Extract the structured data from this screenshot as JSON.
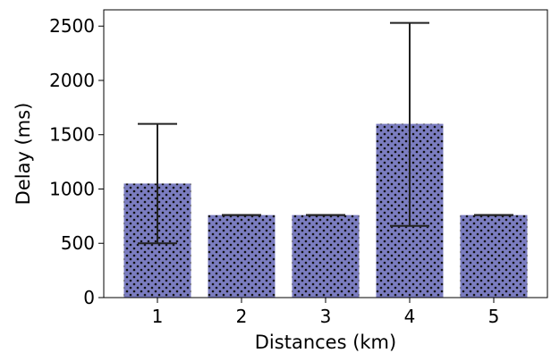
{
  "chart_data": {
    "type": "bar",
    "categories": [
      "1",
      "2",
      "3",
      "4",
      "5"
    ],
    "values": [
      1050,
      760,
      760,
      1600,
      760
    ],
    "error_low": [
      500,
      760,
      760,
      660,
      760
    ],
    "error_high": [
      1600,
      760,
      760,
      2530,
      760
    ],
    "xlabel": "Distances (km)",
    "ylabel": "Delay (ms)",
    "ylim": [
      0,
      2650
    ],
    "yticks": [
      0,
      500,
      1000,
      1500,
      2000,
      2500
    ],
    "ytick_labels": [
      "0",
      "500",
      "1000",
      "1500",
      "2000",
      "2500"
    ],
    "grid": false,
    "bar_color": "#7b7dc0",
    "bar_hatch": "dots",
    "errorbar_color": "#222222"
  }
}
